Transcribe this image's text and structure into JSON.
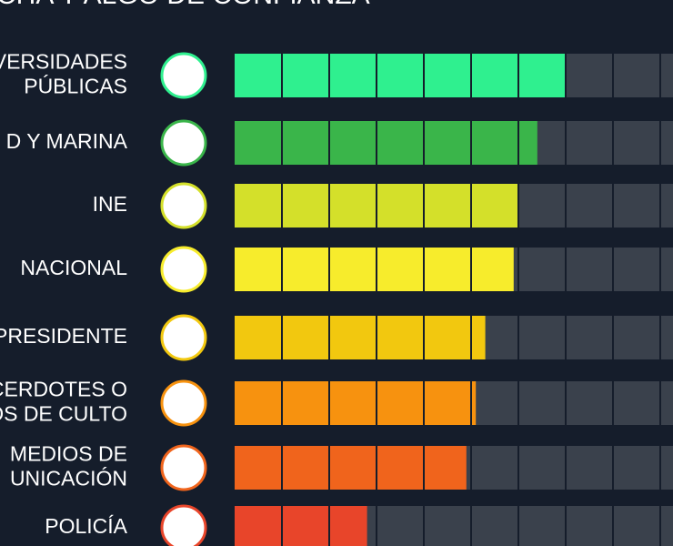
{
  "chart_data": {
    "type": "bar",
    "title": "CHA Y ALGO DE CONFIANZA",
    "categories": [
      [
        "VERSIDADES",
        "PÚBLICAS"
      ],
      [
        "D Y MARINA"
      ],
      [
        "INE"
      ],
      [
        "NACIONAL"
      ],
      [
        "PRESIDENTE"
      ],
      [
        "CERDOTES O",
        "OS DE CULTO"
      ],
      [
        "MEDIOS DE",
        "UNICACIÓN"
      ],
      [
        "POLICÍA"
      ]
    ],
    "values": [
      70,
      64,
      60,
      59,
      53,
      51,
      49,
      28
    ],
    "colors": [
      "#2ff08f",
      "#3ab54a",
      "#d4e02a",
      "#f7ec2c",
      "#f2c80f",
      "#f7920f",
      "#f0641c",
      "#e8452a"
    ],
    "xlim": [
      0,
      100
    ]
  }
}
